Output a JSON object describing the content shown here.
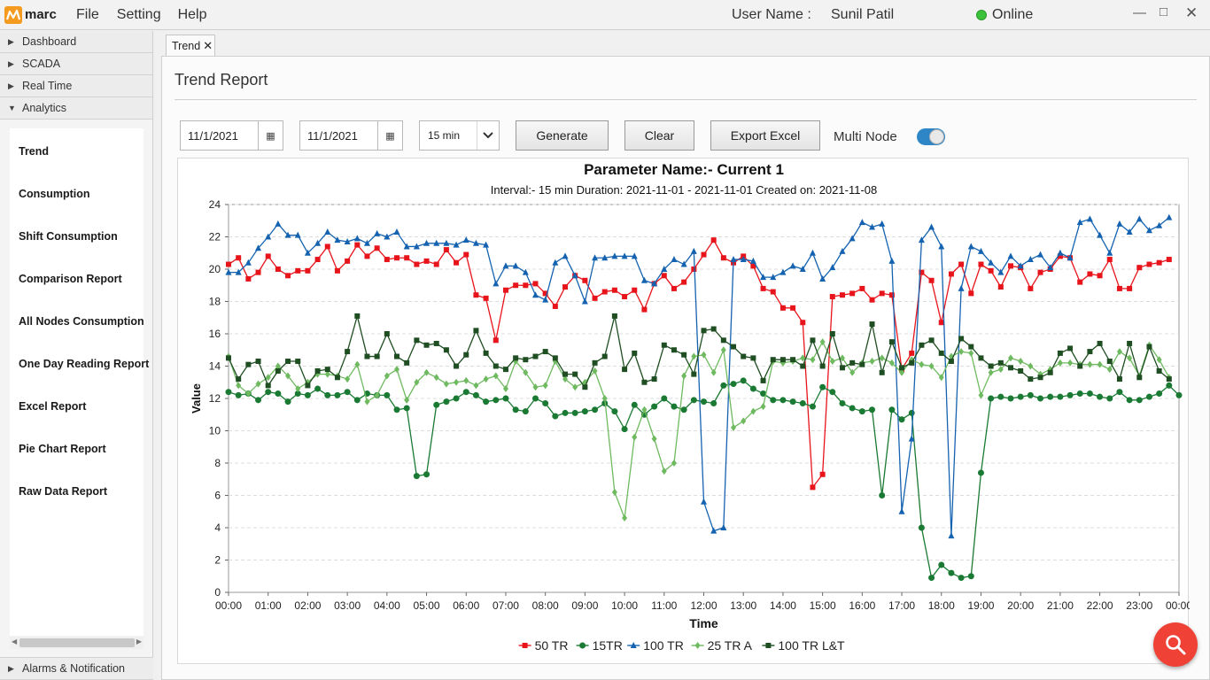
{
  "app": {
    "logo_text": "marc"
  },
  "menu": {
    "file": "File",
    "setting": "Setting",
    "help": "Help"
  },
  "header": {
    "user_label": "User Name :",
    "user_name": "Sunil Patil",
    "status": "Online",
    "status_color": "#3cc13b"
  },
  "sidebar": {
    "sections": [
      {
        "label": "Dashboard",
        "expanded": false
      },
      {
        "label": "SCADA",
        "expanded": false
      },
      {
        "label": "Real Time",
        "expanded": false
      },
      {
        "label": "Analytics",
        "expanded": true
      }
    ],
    "analytics_items": [
      "Trend",
      "Consumption",
      "Shift Consumption",
      "Comparison Report",
      "All Nodes Consumption",
      "One Day Reading Report",
      "Excel Report",
      "Pie Chart Report",
      "Raw Data Report"
    ],
    "bottom_section": "Alarms & Notification"
  },
  "tab": {
    "label": "Trend",
    "close": "✕"
  },
  "page": {
    "title": "Trend Report"
  },
  "controls": {
    "from_date": "11/1/2021",
    "to_date": "11/1/2021",
    "interval": "15 min",
    "generate": "Generate",
    "clear": "Clear",
    "export": "Export Excel",
    "multi_node": "Multi Node",
    "multi_node_on": true
  },
  "chart_data": {
    "type": "line",
    "title": "Parameter Name:- Current 1",
    "subtitle": "Interval:- 15 min Duration: 2021-11-01 - 2021-11-01 Created on: 2021-11-08",
    "xlabel": "Time",
    "ylabel": "Value",
    "ylim": [
      0,
      24
    ],
    "yticks": [
      0,
      2,
      4,
      6,
      8,
      10,
      12,
      14,
      16,
      18,
      20,
      22,
      24
    ],
    "xticks": [
      "00:00",
      "01:00",
      "02:00",
      "03:00",
      "04:00",
      "05:00",
      "06:00",
      "07:00",
      "08:00",
      "09:00",
      "10:00",
      "11:00",
      "12:00",
      "13:00",
      "14:00",
      "15:00",
      "16:00",
      "17:00",
      "18:00",
      "19:00",
      "20:00",
      "21:00",
      "22:00",
      "23:00",
      "00:00"
    ],
    "x_unit": "hours",
    "x_step": 0.25,
    "grid": "horizontal",
    "legend_position": "bottom-center",
    "series": [
      {
        "name": "50 TR",
        "color": "#e8141b",
        "marker": "square",
        "values": [
          20.3,
          20.7,
          19.4,
          19.8,
          20.8,
          20.0,
          19.6,
          19.9,
          19.9,
          20.6,
          21.4,
          19.9,
          20.5,
          21.5,
          20.8,
          21.3,
          20.6,
          20.7,
          20.7,
          20.3,
          20.5,
          20.3,
          21.2,
          20.4,
          20.9,
          18.4,
          18.2,
          15.6,
          18.7,
          19.0,
          19.0,
          19.1,
          18.5,
          17.7,
          18.9,
          19.6,
          19.3,
          18.2,
          18.6,
          18.7,
          18.3,
          18.7,
          17.5,
          19.1,
          19.6,
          18.8,
          19.2,
          20.0,
          20.9,
          21.8,
          20.7,
          20.4,
          20.8,
          20.2,
          18.8,
          18.6,
          17.6,
          17.6,
          16.7,
          6.5,
          7.3,
          18.3,
          18.4,
          18.5,
          18.8,
          18.1,
          18.5,
          18.4,
          13.8,
          14.8,
          19.8,
          19.3,
          16.7,
          19.7,
          20.3,
          18.5,
          20.3,
          19.9,
          18.9,
          20.2,
          20.1,
          18.8,
          19.8,
          20.0,
          20.8,
          20.7,
          19.2,
          19.7,
          19.6,
          20.6,
          18.8,
          18.8,
          20.1,
          20.3,
          20.4,
          20.6
        ]
      },
      {
        "name": "15TR",
        "color": "#1a7a33",
        "marker": "circle",
        "values": [
          12.4,
          12.2,
          12.3,
          11.9,
          12.4,
          12.3,
          11.8,
          12.3,
          12.2,
          12.6,
          12.2,
          12.2,
          12.4,
          11.9,
          12.3,
          12.2,
          12.2,
          11.3,
          11.4,
          7.2,
          7.3,
          11.6,
          11.8,
          12.0,
          12.4,
          12.2,
          11.8,
          11.9,
          12.0,
          11.3,
          11.2,
          12.0,
          11.7,
          10.9,
          11.1,
          11.1,
          11.2,
          11.3,
          11.7,
          11.2,
          10.1,
          11.6,
          11.0,
          11.5,
          12.0,
          11.5,
          11.3,
          11.9,
          11.8,
          11.7,
          12.8,
          12.9,
          13.1,
          12.6,
          12.3,
          11.9,
          11.9,
          11.8,
          11.7,
          11.5,
          12.7,
          12.4,
          11.7,
          11.4,
          11.2,
          11.3,
          6.0,
          11.3,
          10.7,
          11.1,
          4.0,
          0.9,
          1.7,
          1.2,
          0.9,
          1.0,
          7.4,
          12.0,
          12.1,
          12.0,
          12.1,
          12.2,
          12.0,
          12.1,
          12.1,
          12.2,
          12.3,
          12.3,
          12.1,
          12.0,
          12.4,
          11.9,
          11.9,
          12.1,
          12.3,
          12.8,
          12.2
        ]
      },
      {
        "name": "100 TR",
        "color": "#1563b0",
        "marker": "triangle",
        "values": [
          19.8,
          19.8,
          20.4,
          21.3,
          22.0,
          22.8,
          22.1,
          22.1,
          21.0,
          21.6,
          22.3,
          21.8,
          21.7,
          21.9,
          21.6,
          22.2,
          22.0,
          22.3,
          21.4,
          21.4,
          21.6,
          21.6,
          21.6,
          21.5,
          21.8,
          21.6,
          21.5,
          19.1,
          20.2,
          20.2,
          19.8,
          18.4,
          18.1,
          20.4,
          20.8,
          19.6,
          18.0,
          20.7,
          20.7,
          20.8,
          20.8,
          20.8,
          19.3,
          19.1,
          20.0,
          20.6,
          20.3,
          21.1,
          5.6,
          3.8,
          4.0,
          20.6,
          20.6,
          20.5,
          19.5,
          19.5,
          19.8,
          20.2,
          20.0,
          21.0,
          19.4,
          20.1,
          21.1,
          21.9,
          22.9,
          22.6,
          22.8,
          20.5,
          5.0,
          9.5,
          21.8,
          22.6,
          21.4,
          3.5,
          18.8,
          21.4,
          21.1,
          20.4,
          19.8,
          20.8,
          20.2,
          20.6,
          20.9,
          20.1,
          21.0,
          20.7,
          22.9,
          23.1,
          22.1,
          21.0,
          22.8,
          22.3,
          23.1,
          22.4,
          22.7,
          23.2
        ]
      },
      {
        "name": "25 TR A",
        "color": "#6fba60",
        "marker": "diamond",
        "values": [
          14.6,
          12.8,
          12.3,
          12.9,
          13.3,
          14.0,
          13.4,
          12.6,
          13.0,
          13.5,
          13.5,
          13.4,
          13.2,
          14.1,
          11.8,
          12.2,
          13.4,
          13.8,
          11.9,
          13.0,
          13.6,
          13.3,
          12.9,
          13.0,
          13.1,
          12.8,
          13.2,
          13.4,
          12.6,
          14.3,
          13.6,
          12.7,
          12.8,
          14.3,
          13.2,
          12.7,
          13.0,
          13.7,
          12.0,
          6.2,
          4.6,
          9.6,
          11.3,
          9.5,
          7.5,
          8.0,
          13.4,
          14.6,
          14.7,
          13.6,
          15.0,
          10.2,
          10.6,
          11.2,
          11.5,
          14.3,
          14.2,
          14.3,
          14.5,
          14.4,
          15.5,
          14.3,
          14.5,
          13.6,
          14.2,
          14.3,
          14.5,
          14.2,
          13.6,
          14.4,
          14.1,
          14.0,
          13.3,
          14.6,
          14.9,
          14.8,
          12.2,
          13.6,
          13.8,
          14.5,
          14.3,
          14.0,
          13.5,
          13.8,
          14.2,
          14.2,
          14.1,
          14.1,
          14.1,
          13.8,
          14.9,
          14.5,
          13.4,
          15.3,
          14.4,
          13.3
        ]
      },
      {
        "name": "100 TR L&T",
        "color": "#1f4e22",
        "marker": "square",
        "values": [
          14.5,
          13.2,
          14.1,
          14.3,
          12.8,
          13.7,
          14.3,
          14.3,
          12.8,
          13.7,
          13.8,
          13.3,
          14.9,
          17.1,
          14.6,
          14.6,
          16.0,
          14.6,
          14.2,
          15.6,
          15.3,
          15.4,
          15.0,
          14.0,
          14.7,
          16.2,
          14.8,
          14.0,
          13.8,
          14.5,
          14.4,
          14.6,
          14.9,
          14.5,
          13.5,
          13.5,
          12.7,
          14.2,
          14.6,
          17.1,
          13.8,
          14.8,
          13.0,
          13.2,
          15.3,
          15.0,
          14.7,
          13.5,
          16.2,
          16.3,
          15.6,
          15.2,
          14.6,
          14.5,
          13.1,
          14.4,
          14.4,
          14.4,
          14.0,
          15.6,
          14.0,
          16.0,
          13.9,
          14.2,
          14.1,
          16.6,
          13.6,
          15.5,
          13.9,
          14.2,
          15.3,
          15.6,
          14.8,
          14.3,
          15.7,
          15.2,
          14.5,
          14.0,
          14.2,
          13.9,
          13.7,
          13.2,
          13.3,
          13.6,
          14.8,
          15.1,
          14.0,
          14.9,
          15.4,
          14.3,
          13.2,
          15.4,
          13.3,
          15.2,
          13.7,
          13.2
        ]
      }
    ]
  }
}
